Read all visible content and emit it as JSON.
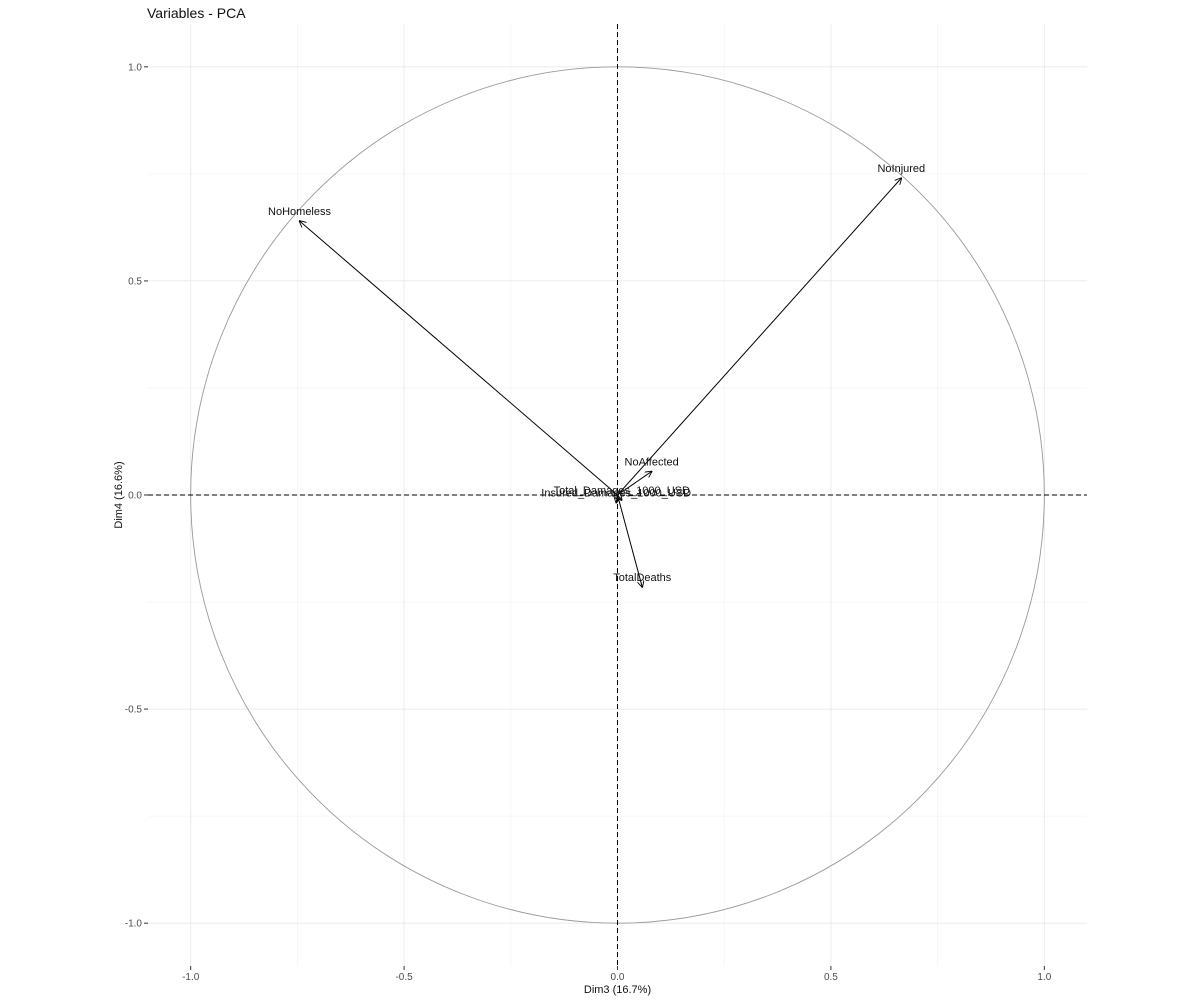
{
  "chart_data": {
    "type": "scatter",
    "subtype": "pca-correlation-circle",
    "title": "Variables - PCA",
    "xlabel": "Dim3 (16.7%)",
    "ylabel": "Dim4 (16.6%)",
    "xlim": [
      -1.1,
      1.1
    ],
    "ylim": [
      -1.1,
      1.1
    ],
    "x_ticks": [
      -1.0,
      -0.5,
      0.0,
      0.5,
      1.0
    ],
    "y_ticks": [
      -1.0,
      -0.5,
      0.0,
      0.5,
      1.0
    ],
    "x_tick_labels": [
      "-1.0",
      "-0.5",
      "0.0",
      "0.5",
      "1.0"
    ],
    "y_tick_labels": [
      "-1.0",
      "-0.5",
      "0.0",
      "0.5",
      "1.0"
    ],
    "grid": true,
    "unit_circle": true,
    "reference_lines": "dashed at x=0 and y=0",
    "colors": {
      "arrow": "#000000",
      "circle": "#999999",
      "grid_major": "#ebebeb",
      "grid_minor": "#f4f4f4"
    },
    "variables": [
      {
        "name": "NoInjured",
        "x": 0.665,
        "y": 0.74
      },
      {
        "name": "NoHomeless",
        "x": -0.745,
        "y": 0.64
      },
      {
        "name": "NoAffected",
        "x": 0.08,
        "y": 0.055
      },
      {
        "name": "TotalDeaths",
        "x": 0.058,
        "y": -0.215
      },
      {
        "name": "Total_Damages_1000_USD",
        "x": 0.01,
        "y": -0.012
      },
      {
        "name": "Insured_Damages_1000_USD",
        "x": -0.003,
        "y": -0.018
      }
    ]
  }
}
